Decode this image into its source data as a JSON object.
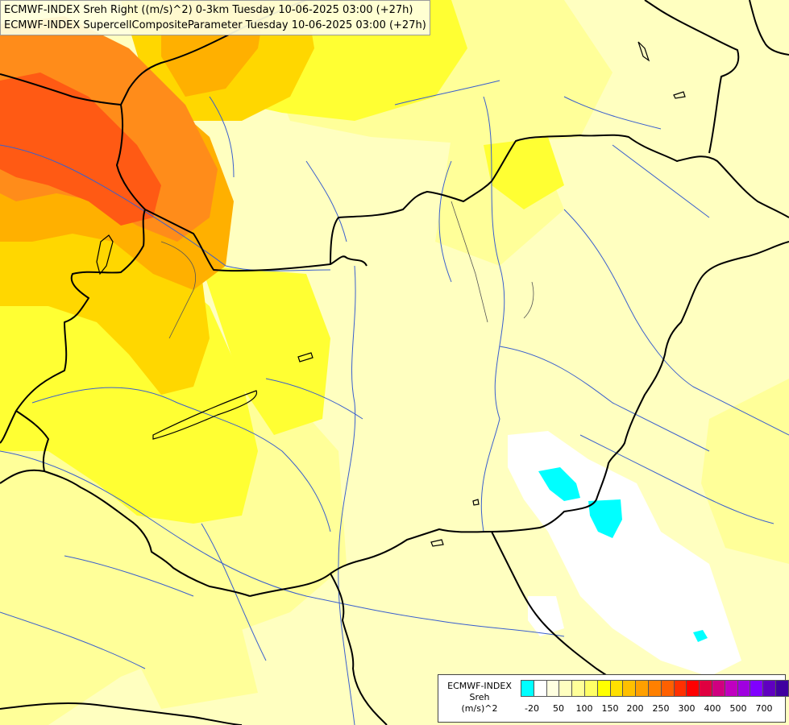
{
  "title": {
    "line1": "ECMWF-INDEX Sreh Right ((m/s)^2) 0-3km Tuesday 10-06-2025 03:00 (+27h)",
    "line2": "ECMWF-INDEX SupercellCompositeParameter Tuesday 10-06-2025 03:00 (+27h)"
  },
  "legend": {
    "line1": "ECMWF-INDEX",
    "line2": "Sreh",
    "line3": "(m/s)^2",
    "colors": [
      "#00ffff",
      "#ffffff",
      "#ffffe0",
      "#ffffc0",
      "#ffff99",
      "#ffff66",
      "#ffff00",
      "#ffe000",
      "#ffc000",
      "#ffa000",
      "#ff8000",
      "#ff6000",
      "#ff3000",
      "#ff0000",
      "#e00040",
      "#d00080",
      "#c000c0",
      "#a000e0",
      "#8000ff",
      "#6000c0",
      "#4000a0",
      "#000080"
    ],
    "ticks": [
      "-20",
      "50",
      "100",
      "150",
      "200",
      "250",
      "300",
      "400",
      "500",
      "700"
    ]
  },
  "colors": {
    "lightest": "#ffffc0",
    "light": "#ffff99",
    "yellow": "#ffff33",
    "gold": "#ffd700",
    "orange": "#ffb000",
    "dark_orange": "#ff8c1a",
    "red_orange": "#ff5a14",
    "cyan": "#00ffff"
  }
}
